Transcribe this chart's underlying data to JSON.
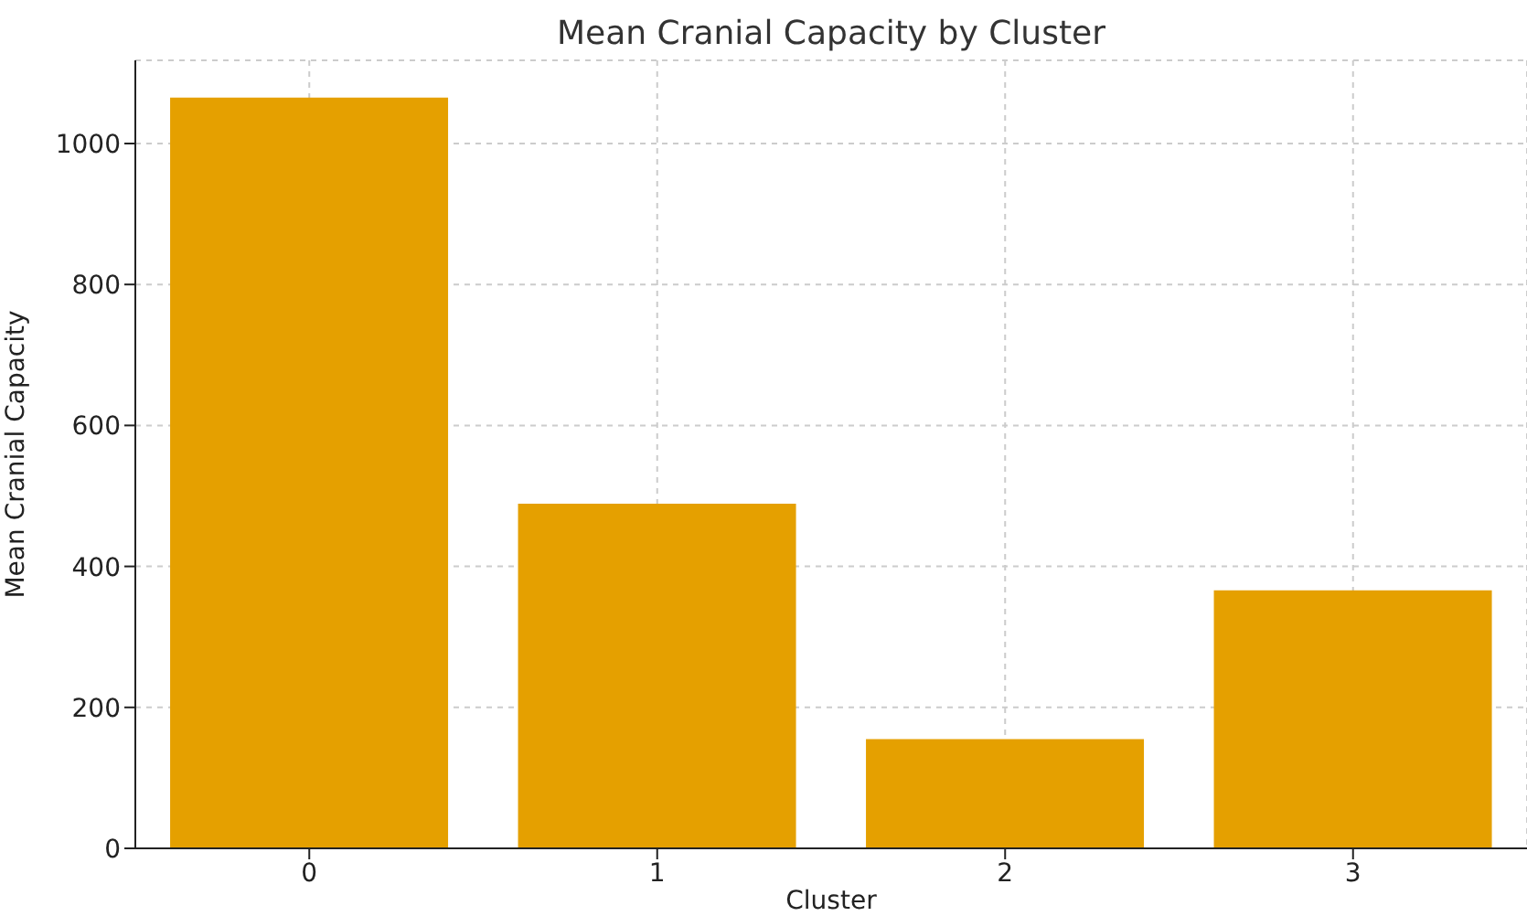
{
  "chart_data": {
    "type": "bar",
    "title": "Mean Cranial Capacity by Cluster",
    "xlabel": "Cluster",
    "ylabel": "Mean Cranial Capacity",
    "categories": [
      "0",
      "1",
      "2",
      "3"
    ],
    "values": [
      1065,
      489,
      155,
      366
    ],
    "color": "#e5a000",
    "ylim": [
      0,
      1118
    ],
    "yticks": [
      0,
      200,
      400,
      600,
      800,
      1000
    ],
    "grid": true
  }
}
